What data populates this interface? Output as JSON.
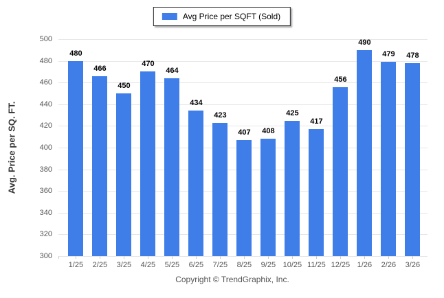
{
  "legend": {
    "label": "Avg Price per SQFT (Sold)"
  },
  "y_axis": {
    "title": "Avg. Price per SQ. FT.",
    "min": 300,
    "max": 500,
    "step": 20
  },
  "footer": {
    "copyright": "Copyright © TrendGraphix, Inc."
  },
  "colors": {
    "bar": "#3f7ee9",
    "grid": "#e7e7e7",
    "axis_text": "#555555",
    "value_text": "#000000",
    "legend_border": "#26262e"
  },
  "chart_data": {
    "type": "bar",
    "title": "Avg Price per SQFT (Sold)",
    "categories": [
      "1/25",
      "2/25",
      "3/25",
      "4/25",
      "5/25",
      "6/25",
      "7/25",
      "8/25",
      "9/25",
      "10/25",
      "11/25",
      "12/25",
      "1/26",
      "2/26",
      "3/26"
    ],
    "values": [
      480,
      466,
      450,
      470,
      464,
      434,
      423,
      407,
      408,
      425,
      417,
      456,
      490,
      479,
      478
    ],
    "xlabel": "",
    "ylabel": "Avg. Price per SQ. FT.",
    "ylim": [
      300,
      500
    ],
    "ytick_step": 20,
    "grid": true,
    "legend_position": "top-center",
    "value_labels": true
  }
}
